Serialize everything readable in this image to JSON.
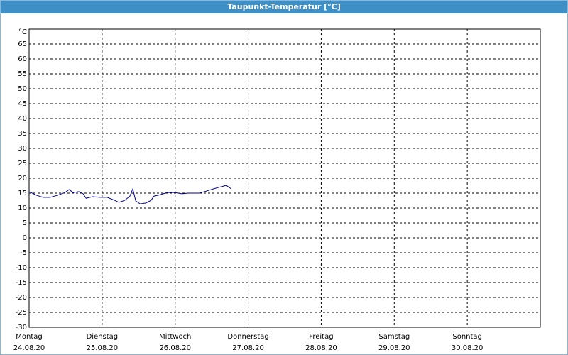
{
  "chart_data": {
    "type": "line",
    "title": "Taupunkt-Temperatur [°C]",
    "y_unit": "°C",
    "x": [
      0,
      0.1,
      0.19,
      0.29,
      0.39,
      0.49,
      0.55,
      0.6,
      0.68,
      0.74,
      0.78,
      0.87,
      0.97,
      1.07,
      1.17,
      1.23,
      1.31,
      1.38,
      1.42,
      1.46,
      1.52,
      1.6,
      1.67,
      1.71,
      1.8,
      1.89,
      1.99,
      2.09,
      2.18,
      2.33,
      2.43,
      2.52,
      2.62,
      2.7,
      2.77
    ],
    "series": [
      {
        "name": "Taupunkt",
        "color": "#00008b",
        "values": [
          15.5,
          14.3,
          13.6,
          13.6,
          14.3,
          15.2,
          16.2,
          15.2,
          15.5,
          14.8,
          13.3,
          13.8,
          13.6,
          13.6,
          12.6,
          11.9,
          12.6,
          14,
          16.4,
          12.4,
          11.4,
          11.7,
          12.6,
          14,
          14.5,
          15.2,
          15.2,
          14.8,
          15,
          15,
          15.7,
          16.4,
          17.1,
          17.6,
          16.4
        ]
      }
    ],
    "xlim": [
      0,
      7
    ],
    "xticks": [
      0,
      1,
      2,
      3,
      4,
      5,
      6
    ],
    "xtick_days": [
      "Montag",
      "Dienstag",
      "Mittwoch",
      "Donnerstag",
      "Freitag",
      "Samstag",
      "Sonntag"
    ],
    "xtick_dates": [
      "24.08.20",
      "25.08.20",
      "26.08.20",
      "27.08.20",
      "28.08.20",
      "29.08.20",
      "30.08.20"
    ],
    "ylim": [
      -30,
      70
    ],
    "yticks": [
      -30,
      -25,
      -20,
      -15,
      -10,
      -5,
      0,
      5,
      10,
      15,
      20,
      25,
      30,
      35,
      40,
      45,
      50,
      55,
      60,
      65
    ],
    "grid": true
  }
}
